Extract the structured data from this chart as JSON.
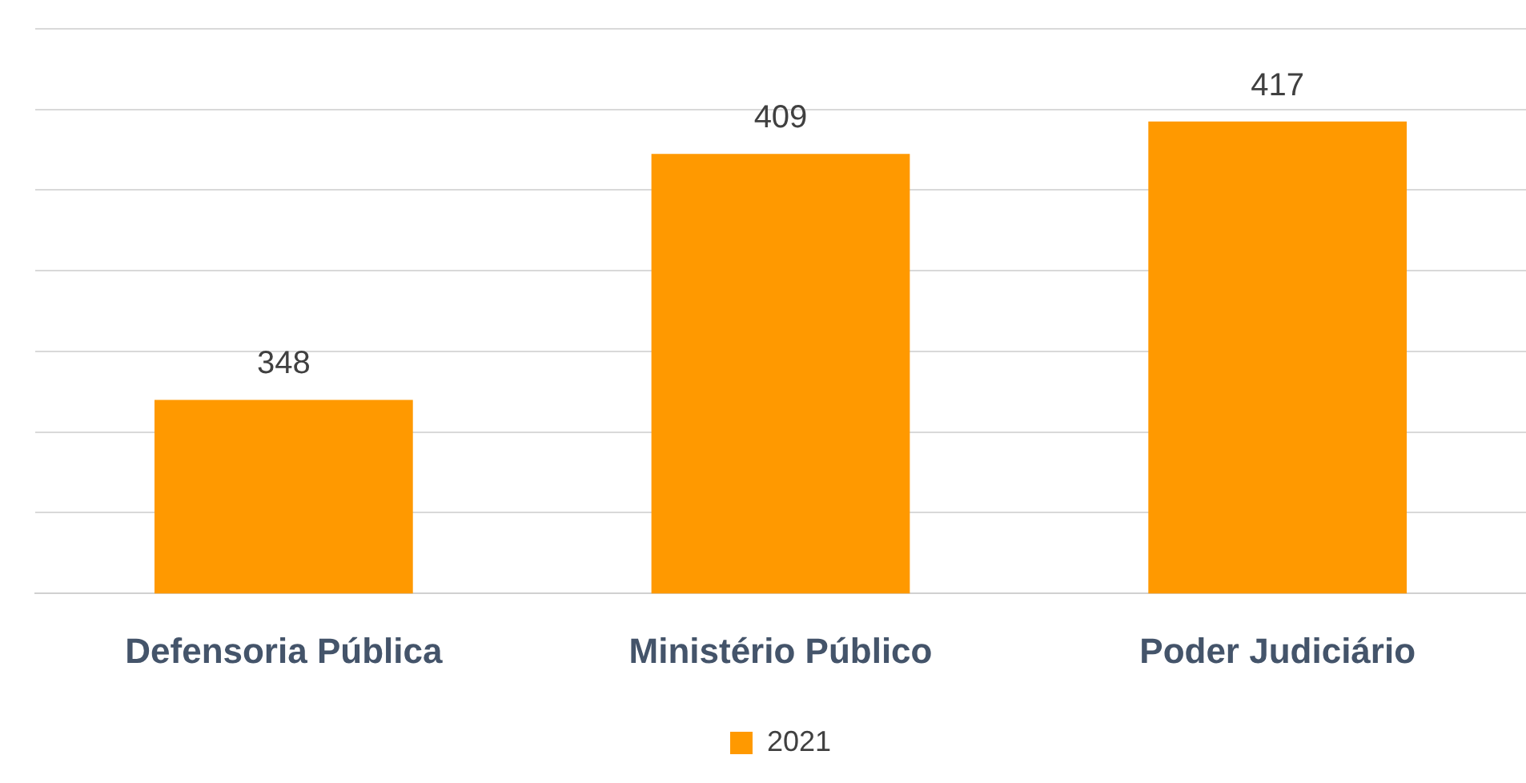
{
  "chart_data": {
    "type": "bar",
    "categories": [
      "Defensoria Pública",
      "Ministério Público",
      "Poder Judiciário"
    ],
    "series": [
      {
        "name": "2021",
        "color": "#ff9900",
        "values": [
          348,
          409,
          417
        ]
      }
    ],
    "ylim": [
      300,
      440
    ],
    "yticks": [
      {
        "value": 300,
        "label": null
      },
      {
        "value": 320,
        "label": null
      },
      {
        "value": 340,
        "label": null
      },
      {
        "value": 360,
        "label": null
      },
      {
        "value": 380,
        "label": null
      },
      {
        "value": 400,
        "label": null
      },
      {
        "value": 420,
        "label": null
      },
      {
        "value": 440,
        "label": null
      }
    ],
    "tick_labels": "x",
    "grid": "y",
    "legend": "bottom",
    "data_labels": true
  }
}
